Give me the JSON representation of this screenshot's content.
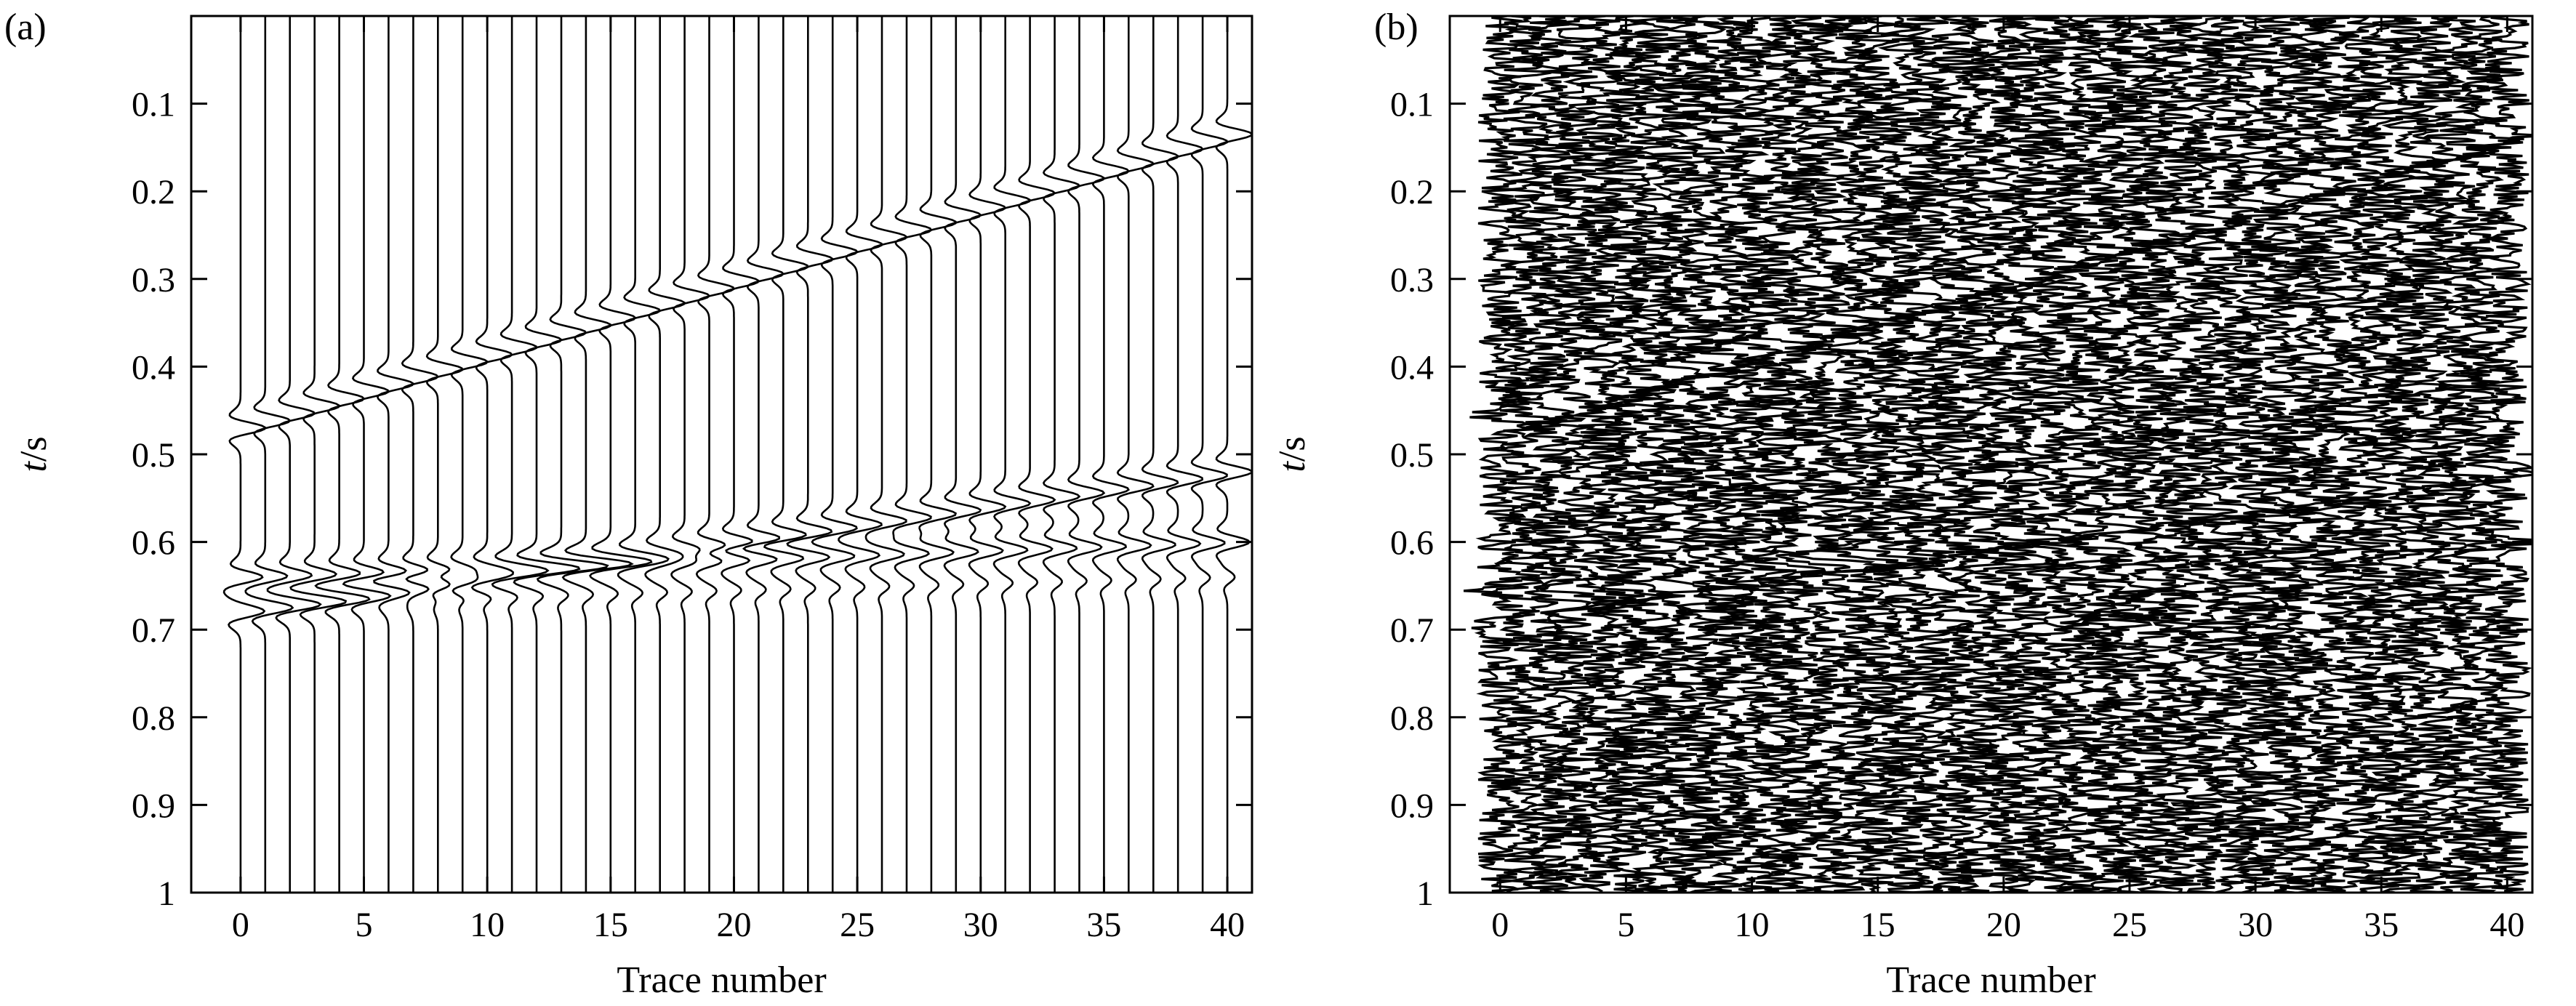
{
  "chart_data": [
    {
      "panel_label": "(a)",
      "type": "line",
      "subtype": "seismic-wiggle",
      "xlabel": "Trace number",
      "ylabel_italic": "t",
      "ylabel_rest": "/s",
      "x_ticks": [
        "0",
        "5",
        "10",
        "15",
        "20",
        "25",
        "30",
        "35",
        "40"
      ],
      "y_ticks": [
        "0.1",
        "0.2",
        "0.3",
        "0.4",
        "0.5",
        "0.6",
        "0.7",
        "0.8",
        "0.9",
        "1"
      ],
      "xlim": [
        -2,
        41
      ],
      "ylim": [
        0,
        1
      ],
      "y_inverted": true,
      "traces": [
        0,
        40
      ],
      "trace_count": 41,
      "noise": 0,
      "events": [
        {
          "t_trace0": 0.47,
          "t_trace40": 0.135,
          "amp": 1
        },
        {
          "t_trace0": 0.68,
          "t_trace40": 0.52,
          "amp": 1
        }
      ],
      "secondary_events": [
        {
          "t_trace0": 0.64,
          "t_trace40": 0.6,
          "amp": 0.9
        },
        {
          "t_trace0": 0.67,
          "t_trace40": 0.64,
          "amp": 0.3
        }
      ],
      "grid": false
    },
    {
      "panel_label": "(b)",
      "type": "line",
      "subtype": "seismic-wiggle",
      "xlabel": "Trace number",
      "ylabel_italic": "t",
      "ylabel_rest": "/s",
      "x_ticks": [
        "0",
        "5",
        "10",
        "15",
        "20",
        "25",
        "30",
        "35",
        "40"
      ],
      "y_ticks": [
        "0.1",
        "0.2",
        "0.3",
        "0.4",
        "0.5",
        "0.6",
        "0.7",
        "0.8",
        "0.9",
        "1"
      ],
      "xlim": [
        -2,
        41
      ],
      "ylim": [
        0,
        1
      ],
      "y_inverted": true,
      "traces": [
        0,
        40
      ],
      "trace_count": 41,
      "noise": 0.55,
      "events": [
        {
          "t_trace0": 0.47,
          "t_trace40": 0.135,
          "amp": 1
        },
        {
          "t_trace0": 0.68,
          "t_trace40": 0.52,
          "amp": 1
        }
      ],
      "secondary_events": [
        {
          "t_trace0": 0.64,
          "t_trace40": 0.6,
          "amp": 0.9
        },
        {
          "t_trace0": 0.67,
          "t_trace40": 0.64,
          "amp": 0.3
        }
      ],
      "grid": false
    }
  ]
}
